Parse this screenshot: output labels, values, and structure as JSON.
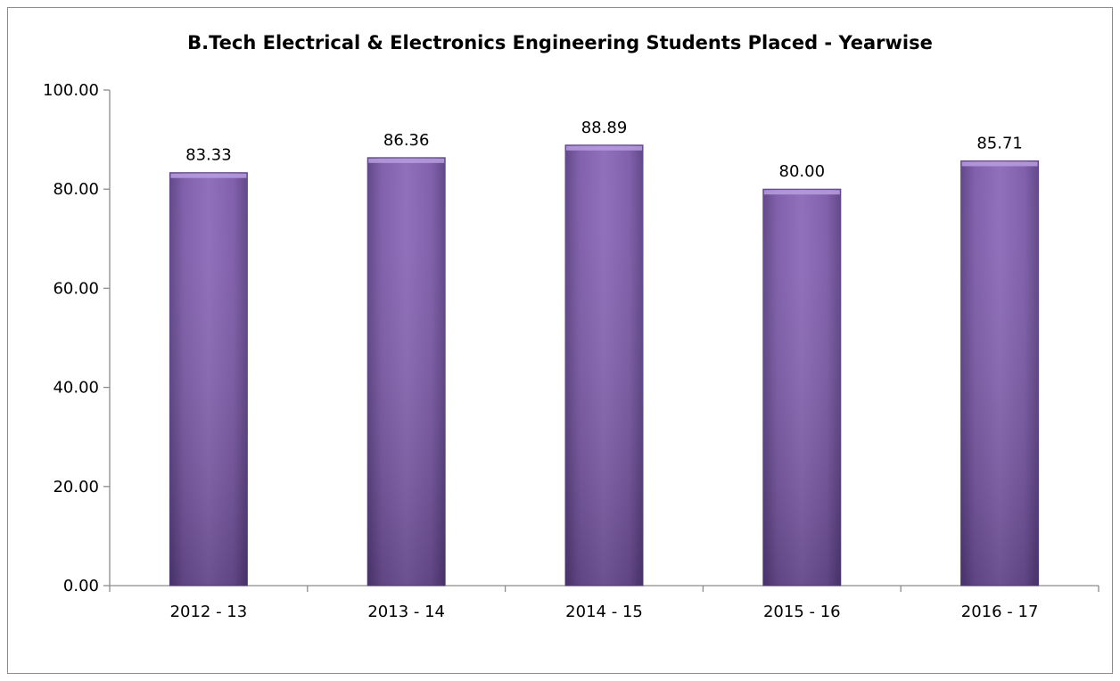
{
  "chart_data": {
    "type": "bar",
    "title": "B.Tech Electrical & Electronics Engineering Students Placed - Yearwise",
    "categories": [
      "2012 - 13",
      "2013 - 14",
      "2014 - 15",
      "2015 - 16",
      "2016 - 17"
    ],
    "values": [
      83.33,
      86.36,
      88.89,
      80.0,
      85.71
    ],
    "data_labels": [
      "83.33",
      "86.36",
      "88.89",
      "80.00",
      "85.71"
    ],
    "y_ticks": [
      "0.00",
      "20.00",
      "40.00",
      "60.00",
      "80.00",
      "100.00"
    ],
    "ylim": [
      0,
      100
    ],
    "xlabel": "",
    "ylabel": "",
    "grid": false,
    "legend": "none",
    "bar_color": "#7b5aa6"
  }
}
